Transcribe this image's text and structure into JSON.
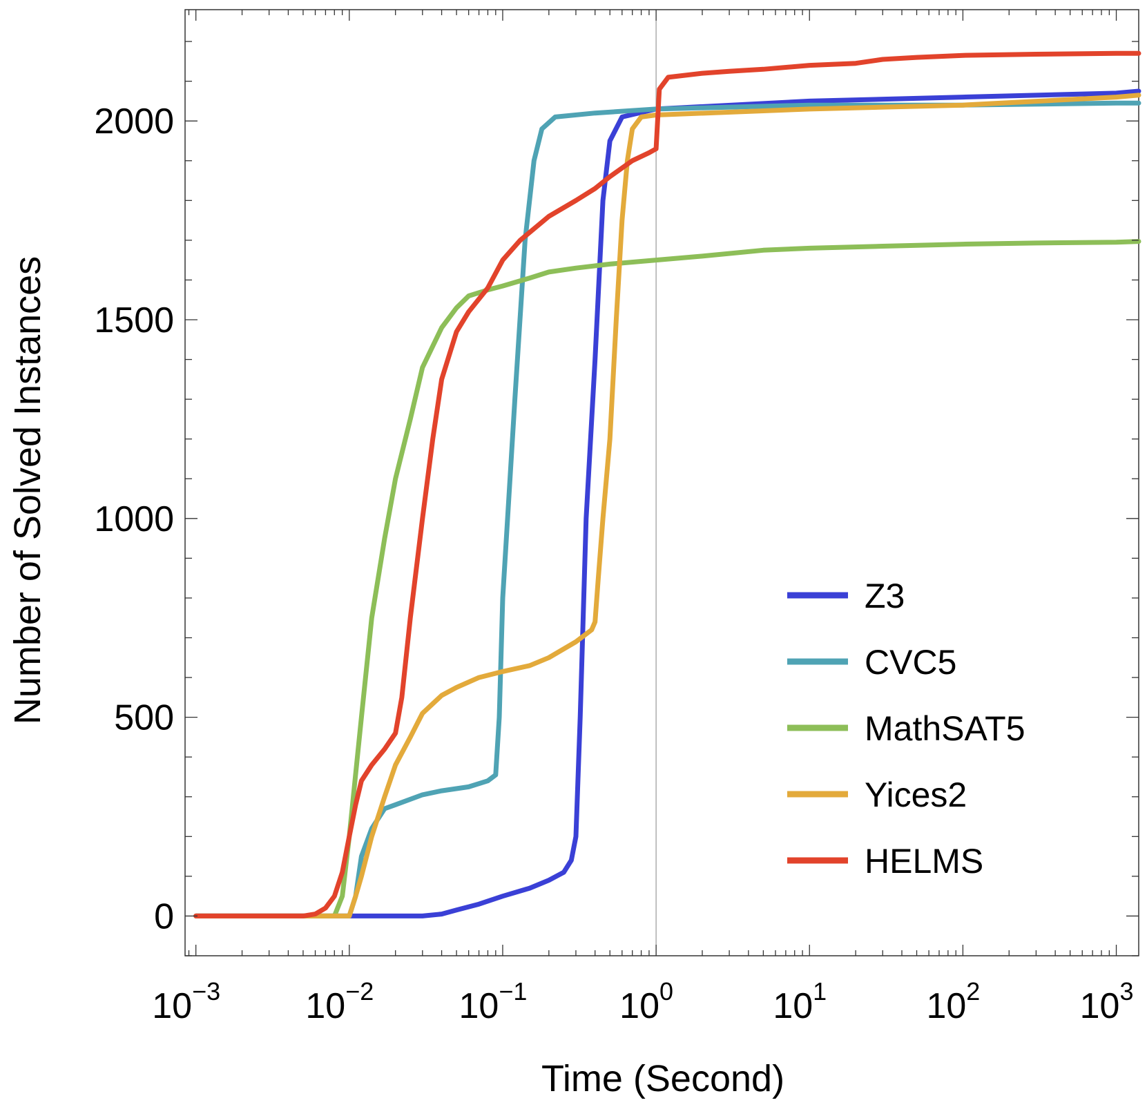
{
  "chart_data": {
    "type": "line",
    "xlabel": "Time (Second)",
    "ylabel": "Number of Solved Instances",
    "x_scale": "log",
    "xlim": [
      0.00085,
      1400
    ],
    "ylim": [
      -100,
      2280
    ],
    "x_ticks": [
      {
        "base": "10",
        "exp": "−3",
        "value": 0.001
      },
      {
        "base": "10",
        "exp": "−2",
        "value": 0.01
      },
      {
        "base": "10",
        "exp": "−1",
        "value": 0.1
      },
      {
        "base": "10",
        "exp": "0",
        "value": 1
      },
      {
        "base": "10",
        "exp": "1",
        "value": 10
      },
      {
        "base": "10",
        "exp": "2",
        "value": 100
      },
      {
        "base": "10",
        "exp": "3",
        "value": 1000
      }
    ],
    "y_ticks": [
      {
        "label": "0",
        "value": 0
      },
      {
        "label": "500",
        "value": 500
      },
      {
        "label": "1000",
        "value": 1000
      },
      {
        "label": "1500",
        "value": 1500
      },
      {
        "label": "2000",
        "value": 2000
      }
    ],
    "reference_line_x": 1,
    "legend_position": "bottom-right",
    "series": [
      {
        "name": "Z3",
        "color": "#3a40d6",
        "points": [
          [
            0.001,
            0
          ],
          [
            0.005,
            0
          ],
          [
            0.01,
            0
          ],
          [
            0.02,
            0
          ],
          [
            0.03,
            0
          ],
          [
            0.04,
            5
          ],
          [
            0.05,
            15
          ],
          [
            0.07,
            30
          ],
          [
            0.1,
            50
          ],
          [
            0.15,
            70
          ],
          [
            0.2,
            90
          ],
          [
            0.25,
            110
          ],
          [
            0.28,
            140
          ],
          [
            0.3,
            200
          ],
          [
            0.32,
            500
          ],
          [
            0.35,
            1000
          ],
          [
            0.4,
            1400
          ],
          [
            0.45,
            1800
          ],
          [
            0.5,
            1950
          ],
          [
            0.6,
            2010
          ],
          [
            1,
            2030
          ],
          [
            10,
            2050
          ],
          [
            100,
            2060
          ],
          [
            1000,
            2070
          ],
          [
            1400,
            2075
          ]
        ]
      },
      {
        "name": "CVC5",
        "color": "#4fa3b4",
        "points": [
          [
            0.001,
            0
          ],
          [
            0.008,
            0
          ],
          [
            0.01,
            0
          ],
          [
            0.011,
            50
          ],
          [
            0.012,
            150
          ],
          [
            0.014,
            220
          ],
          [
            0.017,
            270
          ],
          [
            0.02,
            280
          ],
          [
            0.03,
            305
          ],
          [
            0.04,
            315
          ],
          [
            0.06,
            325
          ],
          [
            0.08,
            340
          ],
          [
            0.09,
            355
          ],
          [
            0.095,
            500
          ],
          [
            0.1,
            800
          ],
          [
            0.12,
            1300
          ],
          [
            0.14,
            1700
          ],
          [
            0.16,
            1900
          ],
          [
            0.18,
            1980
          ],
          [
            0.22,
            2010
          ],
          [
            0.4,
            2020
          ],
          [
            1,
            2030
          ],
          [
            10,
            2040
          ],
          [
            100,
            2040
          ],
          [
            1000,
            2045
          ],
          [
            1400,
            2045
          ]
        ]
      },
      {
        "name": "MathSAT5",
        "color": "#8dbe58",
        "points": [
          [
            0.001,
            0
          ],
          [
            0.007,
            0
          ],
          [
            0.008,
            0
          ],
          [
            0.009,
            50
          ],
          [
            0.01,
            200
          ],
          [
            0.012,
            500
          ],
          [
            0.014,
            750
          ],
          [
            0.017,
            950
          ],
          [
            0.02,
            1100
          ],
          [
            0.025,
            1250
          ],
          [
            0.03,
            1380
          ],
          [
            0.04,
            1480
          ],
          [
            0.05,
            1530
          ],
          [
            0.06,
            1560
          ],
          [
            0.08,
            1575
          ],
          [
            0.1,
            1585
          ],
          [
            0.15,
            1605
          ],
          [
            0.2,
            1620
          ],
          [
            0.3,
            1630
          ],
          [
            0.5,
            1640
          ],
          [
            1,
            1650
          ],
          [
            2,
            1660
          ],
          [
            5,
            1675
          ],
          [
            10,
            1680
          ],
          [
            30,
            1685
          ],
          [
            100,
            1690
          ],
          [
            300,
            1693
          ],
          [
            1000,
            1695
          ],
          [
            1400,
            1697
          ]
        ]
      },
      {
        "name": "Yices2",
        "color": "#e3aa3b",
        "points": [
          [
            0.001,
            0
          ],
          [
            0.009,
            0
          ],
          [
            0.01,
            0
          ],
          [
            0.011,
            50
          ],
          [
            0.012,
            100
          ],
          [
            0.014,
            200
          ],
          [
            0.017,
            300
          ],
          [
            0.02,
            380
          ],
          [
            0.025,
            450
          ],
          [
            0.03,
            510
          ],
          [
            0.04,
            555
          ],
          [
            0.05,
            575
          ],
          [
            0.07,
            600
          ],
          [
            0.1,
            615
          ],
          [
            0.15,
            630
          ],
          [
            0.2,
            650
          ],
          [
            0.3,
            690
          ],
          [
            0.38,
            720
          ],
          [
            0.4,
            740
          ],
          [
            0.42,
            850
          ],
          [
            0.45,
            1000
          ],
          [
            0.5,
            1200
          ],
          [
            0.55,
            1500
          ],
          [
            0.6,
            1750
          ],
          [
            0.65,
            1900
          ],
          [
            0.7,
            1980
          ],
          [
            0.8,
            2010
          ],
          [
            1,
            2015
          ],
          [
            10,
            2030
          ],
          [
            100,
            2040
          ],
          [
            1000,
            2060
          ],
          [
            1400,
            2065
          ]
        ]
      },
      {
        "name": "HELMS",
        "color": "#e2432b",
        "points": [
          [
            0.001,
            0
          ],
          [
            0.004,
            0
          ],
          [
            0.005,
            0
          ],
          [
            0.006,
            5
          ],
          [
            0.007,
            20
          ],
          [
            0.008,
            50
          ],
          [
            0.009,
            110
          ],
          [
            0.01,
            200
          ],
          [
            0.011,
            280
          ],
          [
            0.012,
            340
          ],
          [
            0.014,
            380
          ],
          [
            0.017,
            420
          ],
          [
            0.02,
            460
          ],
          [
            0.022,
            550
          ],
          [
            0.025,
            750
          ],
          [
            0.03,
            1000
          ],
          [
            0.035,
            1200
          ],
          [
            0.04,
            1350
          ],
          [
            0.05,
            1470
          ],
          [
            0.06,
            1520
          ],
          [
            0.08,
            1580
          ],
          [
            0.1,
            1650
          ],
          [
            0.13,
            1700
          ],
          [
            0.2,
            1760
          ],
          [
            0.3,
            1800
          ],
          [
            0.4,
            1830
          ],
          [
            0.5,
            1860
          ],
          [
            0.7,
            1900
          ],
          [
            0.9,
            1920
          ],
          [
            1,
            1930
          ],
          [
            1.05,
            2080
          ],
          [
            1.2,
            2110
          ],
          [
            2,
            2120
          ],
          [
            3,
            2125
          ],
          [
            5,
            2130
          ],
          [
            10,
            2140
          ],
          [
            20,
            2145
          ],
          [
            30,
            2155
          ],
          [
            50,
            2160
          ],
          [
            100,
            2165
          ],
          [
            300,
            2168
          ],
          [
            1000,
            2170
          ],
          [
            1400,
            2170
          ]
        ]
      }
    ]
  }
}
